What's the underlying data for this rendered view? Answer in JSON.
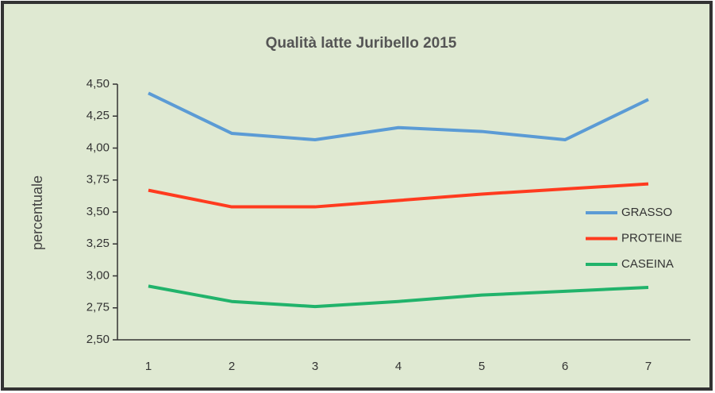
{
  "chart_data": {
    "type": "line",
    "title": "Qualità latte Juribello 2015",
    "y_label": "percentuale",
    "categories": [
      "1",
      "2",
      "3",
      "4",
      "5",
      "6",
      "7"
    ],
    "series": [
      {
        "name": "GRASSO",
        "color": "#5b9bd5",
        "values": [
          4.43,
          4.115,
          4.065,
          4.16,
          4.13,
          4.065,
          4.38
        ]
      },
      {
        "name": "PROTEINE",
        "color": "#ff3b1f",
        "values": [
          3.67,
          3.54,
          3.54,
          3.59,
          3.64,
          3.68,
          3.72
        ]
      },
      {
        "name": "CASEINA",
        "color": "#21b36b",
        "values": [
          2.92,
          2.8,
          2.76,
          2.8,
          2.85,
          2.88,
          2.91
        ]
      }
    ],
    "ylim": [
      2.5,
      4.5
    ],
    "yticks": [
      {
        "value": 2.5,
        "label": "2,50"
      },
      {
        "value": 2.75,
        "label": "2,75"
      },
      {
        "value": 3.0,
        "label": "3,00"
      },
      {
        "value": 3.25,
        "label": "3,25"
      },
      {
        "value": 3.5,
        "label": "3,50"
      },
      {
        "value": 3.75,
        "label": "3,75"
      },
      {
        "value": 4.0,
        "label": "4,00"
      },
      {
        "value": 4.25,
        "label": "4,25"
      },
      {
        "value": 4.5,
        "label": "4,50"
      }
    ],
    "legend": "right"
  }
}
